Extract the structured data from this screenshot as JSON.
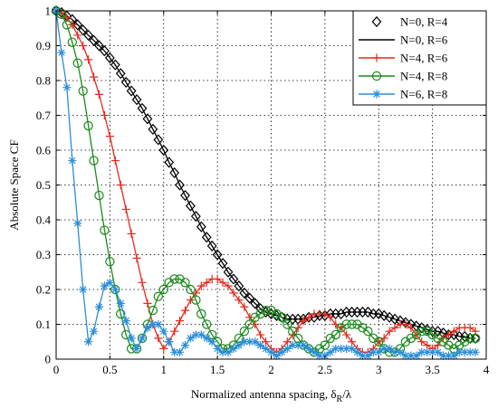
{
  "chart_data": {
    "type": "line",
    "xlabel": "Normalized antenna spacing, δ_R/λ",
    "ylabel": "Absolute Space CF",
    "xlim": [
      0,
      4
    ],
    "ylim": [
      0,
      1
    ],
    "x_ticks": [
      "0",
      "0.5",
      "1",
      "1.5",
      "2",
      "2.5",
      "3",
      "3.5",
      "4"
    ],
    "y_ticks": [
      "0",
      "0.1",
      "0.2",
      "0.3",
      "0.4",
      "0.5",
      "0.6",
      "0.7",
      "0.8",
      "0.9",
      "1"
    ],
    "grid": true,
    "legend_position": "top-right",
    "series": [
      {
        "name": "N=0, R=4",
        "color": "#000000",
        "line": false,
        "marker": "diamond",
        "x": [
          0,
          0.05,
          0.1,
          0.15,
          0.2,
          0.25,
          0.3,
          0.35,
          0.4,
          0.45,
          0.5,
          0.55,
          0.6,
          0.65,
          0.7,
          0.75,
          0.8,
          0.85,
          0.9,
          0.95,
          1.0,
          1.05,
          1.1,
          1.15,
          1.2,
          1.25,
          1.3,
          1.35,
          1.4,
          1.45,
          1.5,
          1.55,
          1.6,
          1.65,
          1.7,
          1.75,
          1.8,
          1.85,
          1.9,
          1.95,
          2.0,
          2.05,
          2.1,
          2.15,
          2.2,
          2.25,
          2.3,
          2.35,
          2.4,
          2.45,
          2.5,
          2.55,
          2.6,
          2.65,
          2.7,
          2.75,
          2.8,
          2.85,
          2.9,
          2.95,
          3.0,
          3.05,
          3.1,
          3.15,
          3.2,
          3.25,
          3.3,
          3.35,
          3.4,
          3.45,
          3.5,
          3.55,
          3.6,
          3.65,
          3.7,
          3.75,
          3.8,
          3.85,
          3.9
        ],
        "y": [
          1.0,
          0.995,
          0.985,
          0.975,
          0.96,
          0.945,
          0.93,
          0.915,
          0.9,
          0.885,
          0.865,
          0.845,
          0.82,
          0.795,
          0.77,
          0.745,
          0.72,
          0.69,
          0.66,
          0.63,
          0.6,
          0.565,
          0.535,
          0.5,
          0.47,
          0.44,
          0.41,
          0.38,
          0.35,
          0.325,
          0.3,
          0.275,
          0.25,
          0.23,
          0.21,
          0.19,
          0.175,
          0.16,
          0.145,
          0.135,
          0.13,
          0.125,
          0.12,
          0.115,
          0.115,
          0.115,
          0.115,
          0.12,
          0.12,
          0.125,
          0.125,
          0.13,
          0.13,
          0.13,
          0.135,
          0.135,
          0.135,
          0.135,
          0.135,
          0.13,
          0.13,
          0.125,
          0.12,
          0.115,
          0.11,
          0.105,
          0.1,
          0.095,
          0.09,
          0.085,
          0.08,
          0.08,
          0.075,
          0.07,
          0.07,
          0.065,
          0.065,
          0.06,
          0.06
        ]
      },
      {
        "name": "N=0, R=6",
        "color": "#000000",
        "line": true,
        "marker": "none",
        "x": [
          0,
          0.05,
          0.1,
          0.15,
          0.2,
          0.25,
          0.3,
          0.35,
          0.4,
          0.45,
          0.5,
          0.55,
          0.6,
          0.65,
          0.7,
          0.75,
          0.8,
          0.85,
          0.9,
          0.95,
          1.0,
          1.05,
          1.1,
          1.15,
          1.2,
          1.25,
          1.3,
          1.35,
          1.4,
          1.45,
          1.5,
          1.55,
          1.6,
          1.65,
          1.7,
          1.75,
          1.8,
          1.85,
          1.9,
          1.95,
          2.0,
          2.05,
          2.1,
          2.15,
          2.2,
          2.25,
          2.3,
          2.35,
          2.4,
          2.45,
          2.5,
          2.55,
          2.6,
          2.65,
          2.7,
          2.75,
          2.8,
          2.85,
          2.9,
          2.95,
          3.0,
          3.05,
          3.1,
          3.15,
          3.2,
          3.25,
          3.3,
          3.35,
          3.4,
          3.45,
          3.5,
          3.55,
          3.6,
          3.65,
          3.7,
          3.75,
          3.8,
          3.85,
          3.9
        ],
        "y": [
          1.0,
          0.995,
          0.985,
          0.975,
          0.96,
          0.945,
          0.93,
          0.915,
          0.9,
          0.885,
          0.865,
          0.845,
          0.82,
          0.795,
          0.77,
          0.745,
          0.72,
          0.69,
          0.66,
          0.63,
          0.6,
          0.565,
          0.535,
          0.5,
          0.47,
          0.44,
          0.41,
          0.38,
          0.35,
          0.325,
          0.3,
          0.275,
          0.25,
          0.23,
          0.21,
          0.19,
          0.175,
          0.16,
          0.145,
          0.135,
          0.13,
          0.125,
          0.12,
          0.115,
          0.115,
          0.115,
          0.115,
          0.12,
          0.12,
          0.125,
          0.125,
          0.13,
          0.13,
          0.13,
          0.135,
          0.135,
          0.135,
          0.135,
          0.135,
          0.13,
          0.13,
          0.125,
          0.12,
          0.115,
          0.11,
          0.105,
          0.1,
          0.095,
          0.09,
          0.085,
          0.08,
          0.08,
          0.075,
          0.07,
          0.07,
          0.065,
          0.065,
          0.06,
          0.06
        ]
      },
      {
        "name": "N=4, R=6",
        "color": "#e8291f",
        "line": true,
        "marker": "plus",
        "x": [
          0,
          0.05,
          0.1,
          0.15,
          0.2,
          0.25,
          0.3,
          0.35,
          0.4,
          0.45,
          0.5,
          0.55,
          0.6,
          0.65,
          0.7,
          0.75,
          0.8,
          0.85,
          0.9,
          0.95,
          1.0,
          1.05,
          1.1,
          1.15,
          1.2,
          1.25,
          1.3,
          1.35,
          1.4,
          1.45,
          1.5,
          1.55,
          1.6,
          1.65,
          1.7,
          1.75,
          1.8,
          1.85,
          1.9,
          1.95,
          2.0,
          2.05,
          2.1,
          2.15,
          2.2,
          2.25,
          2.3,
          2.35,
          2.4,
          2.45,
          2.5,
          2.55,
          2.6,
          2.65,
          2.7,
          2.75,
          2.8,
          2.85,
          2.9,
          2.95,
          3.0,
          3.05,
          3.1,
          3.15,
          3.2,
          3.25,
          3.3,
          3.35,
          3.4,
          3.45,
          3.5,
          3.55,
          3.6,
          3.65,
          3.7,
          3.75,
          3.8,
          3.85,
          3.9
        ],
        "y": [
          1.0,
          0.995,
          0.98,
          0.96,
          0.93,
          0.9,
          0.86,
          0.81,
          0.76,
          0.7,
          0.64,
          0.57,
          0.5,
          0.43,
          0.36,
          0.29,
          0.22,
          0.16,
          0.1,
          0.06,
          0.03,
          0.05,
          0.08,
          0.11,
          0.14,
          0.17,
          0.19,
          0.21,
          0.22,
          0.23,
          0.23,
          0.22,
          0.21,
          0.19,
          0.17,
          0.15,
          0.12,
          0.1,
          0.07,
          0.05,
          0.03,
          0.02,
          0.03,
          0.05,
          0.07,
          0.09,
          0.11,
          0.12,
          0.13,
          0.13,
          0.13,
          0.12,
          0.1,
          0.09,
          0.07,
          0.05,
          0.03,
          0.02,
          0.02,
          0.03,
          0.05,
          0.06,
          0.08,
          0.09,
          0.1,
          0.1,
          0.09,
          0.07,
          0.05,
          0.04,
          0.03,
          0.04,
          0.06,
          0.07,
          0.08,
          0.09,
          0.09,
          0.09,
          0.08
        ]
      },
      {
        "name": "N=4, R=8",
        "color": "#1a8a1a",
        "line": true,
        "marker": "circle",
        "x": [
          0,
          0.05,
          0.1,
          0.15,
          0.2,
          0.25,
          0.3,
          0.35,
          0.4,
          0.45,
          0.5,
          0.55,
          0.6,
          0.65,
          0.7,
          0.75,
          0.8,
          0.85,
          0.9,
          0.95,
          1.0,
          1.05,
          1.1,
          1.15,
          1.2,
          1.25,
          1.3,
          1.35,
          1.4,
          1.45,
          1.5,
          1.55,
          1.6,
          1.65,
          1.7,
          1.75,
          1.8,
          1.85,
          1.9,
          1.95,
          2.0,
          2.05,
          2.1,
          2.15,
          2.2,
          2.25,
          2.3,
          2.35,
          2.4,
          2.45,
          2.5,
          2.55,
          2.6,
          2.65,
          2.7,
          2.75,
          2.8,
          2.85,
          2.9,
          2.95,
          3.0,
          3.05,
          3.1,
          3.15,
          3.2,
          3.25,
          3.3,
          3.35,
          3.4,
          3.45,
          3.5,
          3.55,
          3.6,
          3.65,
          3.7,
          3.75,
          3.8,
          3.85,
          3.9
        ],
        "y": [
          1.0,
          0.99,
          0.96,
          0.91,
          0.85,
          0.77,
          0.67,
          0.57,
          0.47,
          0.37,
          0.28,
          0.2,
          0.13,
          0.07,
          0.03,
          0.03,
          0.06,
          0.1,
          0.14,
          0.18,
          0.2,
          0.22,
          0.23,
          0.23,
          0.22,
          0.2,
          0.17,
          0.13,
          0.1,
          0.07,
          0.05,
          0.03,
          0.03,
          0.04,
          0.06,
          0.08,
          0.1,
          0.12,
          0.13,
          0.14,
          0.14,
          0.13,
          0.12,
          0.1,
          0.08,
          0.06,
          0.04,
          0.03,
          0.02,
          0.03,
          0.04,
          0.06,
          0.07,
          0.09,
          0.1,
          0.1,
          0.1,
          0.09,
          0.08,
          0.06,
          0.05,
          0.03,
          0.02,
          0.02,
          0.03,
          0.05,
          0.06,
          0.07,
          0.08,
          0.08,
          0.07,
          0.06,
          0.05,
          0.04,
          0.03,
          0.04,
          0.05,
          0.06,
          0.06
        ]
      },
      {
        "name": "N=6, R=8",
        "color": "#2b8ed8",
        "line": true,
        "marker": "star",
        "x": [
          0,
          0.05,
          0.1,
          0.15,
          0.2,
          0.25,
          0.3,
          0.35,
          0.4,
          0.45,
          0.5,
          0.55,
          0.6,
          0.65,
          0.7,
          0.75,
          0.8,
          0.85,
          0.9,
          0.95,
          1.0,
          1.05,
          1.1,
          1.15,
          1.2,
          1.25,
          1.3,
          1.35,
          1.4,
          1.45,
          1.5,
          1.55,
          1.6,
          1.65,
          1.7,
          1.75,
          1.8,
          1.85,
          1.9,
          1.95,
          2.0,
          2.05,
          2.1,
          2.15,
          2.2,
          2.25,
          2.3,
          2.35,
          2.4,
          2.45,
          2.5,
          2.55,
          2.6,
          2.65,
          2.7,
          2.75,
          2.8,
          2.85,
          2.9,
          2.95,
          3.0,
          3.05,
          3.1,
          3.15,
          3.2,
          3.25,
          3.3,
          3.35,
          3.4,
          3.45,
          3.5,
          3.55,
          3.6,
          3.65,
          3.7,
          3.75,
          3.8,
          3.85,
          3.9
        ],
        "y": [
          1.0,
          0.88,
          0.78,
          0.57,
          0.39,
          0.2,
          0.05,
          0.08,
          0.15,
          0.21,
          0.22,
          0.2,
          0.16,
          0.11,
          0.06,
          0.03,
          0.06,
          0.09,
          0.1,
          0.1,
          0.08,
          0.05,
          0.02,
          0.02,
          0.04,
          0.06,
          0.07,
          0.07,
          0.06,
          0.05,
          0.03,
          0.02,
          0.02,
          0.03,
          0.04,
          0.05,
          0.05,
          0.05,
          0.04,
          0.03,
          0.02,
          0.01,
          0.02,
          0.03,
          0.04,
          0.04,
          0.04,
          0.03,
          0.02,
          0.01,
          0.01,
          0.02,
          0.03,
          0.03,
          0.03,
          0.03,
          0.02,
          0.01,
          0.01,
          0.02,
          0.02,
          0.03,
          0.03,
          0.02,
          0.02,
          0.01,
          0.01,
          0.01,
          0.02,
          0.02,
          0.02,
          0.02,
          0.01,
          0.01,
          0.01,
          0.02,
          0.02,
          0.02,
          0.02
        ]
      }
    ]
  }
}
